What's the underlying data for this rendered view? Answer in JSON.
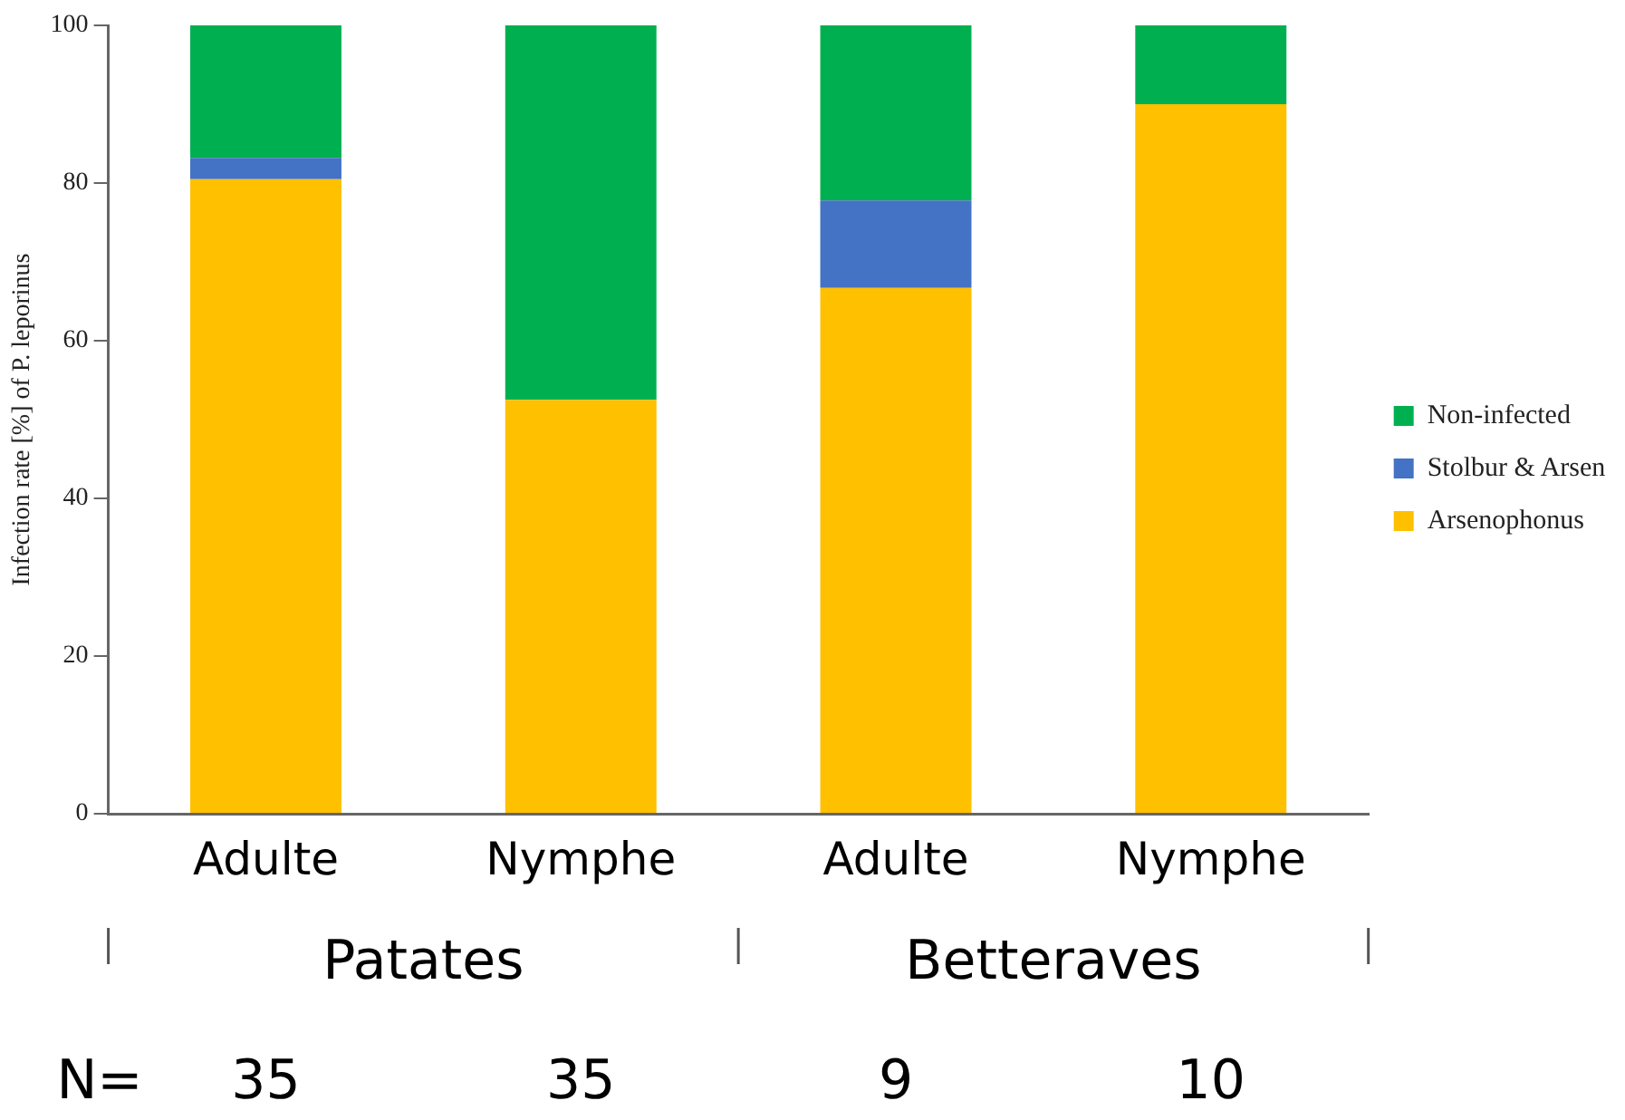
{
  "chart_data": {
    "type": "bar",
    "stacked": true,
    "ylabel": "Infection rate [%] of P. leporinus",
    "categories": [
      "Adulte",
      "Nymphe",
      "Adulte",
      "Nymphe"
    ],
    "series": [
      {
        "name": "Arsenophonus",
        "color": "#ffc000",
        "values": [
          80.5,
          52.5,
          66.7,
          90
        ]
      },
      {
        "name": "Stolbur & Arsen",
        "color": "#4472c4",
        "values": [
          2.7,
          0,
          11.1,
          0
        ]
      },
      {
        "name": "Non-infected",
        "color": "#00b050",
        "values": [
          16.8,
          47.5,
          22.2,
          10
        ]
      }
    ],
    "ylim": [
      0,
      100
    ],
    "yticks": [
      0,
      20,
      40,
      60,
      80,
      100
    ],
    "grid": false,
    "legend": "right",
    "annotations": [
      "Patates",
      "Betteraves",
      "N=",
      "35",
      "35",
      "9",
      "10"
    ]
  }
}
